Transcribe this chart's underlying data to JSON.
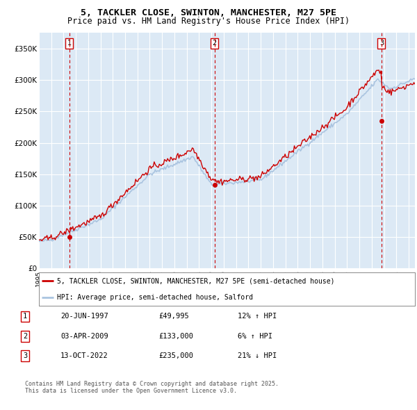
{
  "title1": "5, TACKLER CLOSE, SWINTON, MANCHESTER, M27 5PE",
  "title2": "Price paid vs. HM Land Registry's House Price Index (HPI)",
  "legend_line1": "5, TACKLER CLOSE, SWINTON, MANCHESTER, M27 5PE (semi-detached house)",
  "legend_line2": "HPI: Average price, semi-detached house, Salford",
  "transactions": [
    {
      "num": 1,
      "date": "20-JUN-1997",
      "price": 49995,
      "pct": "12% ↑ HPI",
      "x_year": 1997.47
    },
    {
      "num": 2,
      "date": "03-APR-2009",
      "price": 133000,
      "pct": "6% ↑ HPI",
      "x_year": 2009.25
    },
    {
      "num": 3,
      "date": "13-OCT-2022",
      "price": 235000,
      "pct": "21% ↓ HPI",
      "x_year": 2022.79
    }
  ],
  "ylim": [
    0,
    375000
  ],
  "xlim_start": 1995.0,
  "xlim_end": 2025.5,
  "bg_color": "#dce9f5",
  "grid_color": "#ffffff",
  "red_line_color": "#cc0000",
  "blue_line_color": "#aac4e0",
  "yticks": [
    0,
    50000,
    100000,
    150000,
    200000,
    250000,
    300000,
    350000
  ],
  "ylabels": [
    "£0",
    "£50K",
    "£100K",
    "£150K",
    "£200K",
    "£250K",
    "£300K",
    "£350K"
  ],
  "footnote": "Contains HM Land Registry data © Crown copyright and database right 2025.\nThis data is licensed under the Open Government Licence v3.0."
}
